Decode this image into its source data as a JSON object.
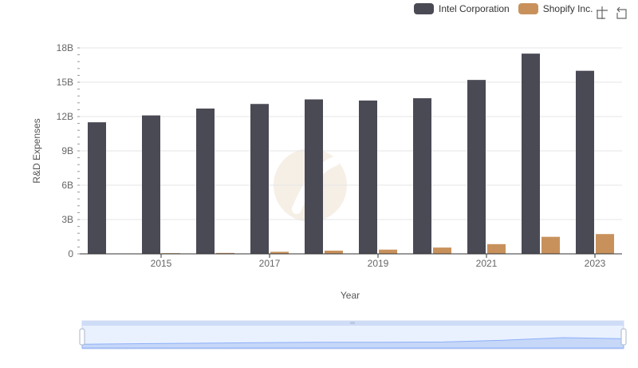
{
  "chart_data": {
    "type": "bar",
    "x": [
      2014,
      2015,
      2016,
      2017,
      2018,
      2019,
      2020,
      2021,
      2022,
      2023
    ],
    "x_tick_labels": [
      "2015",
      "2017",
      "2019",
      "2021",
      "2023"
    ],
    "series": [
      {
        "name": "Intel Corporation",
        "color": "#4a4a55",
        "values": [
          11.5,
          12.1,
          12.7,
          13.1,
          13.5,
          13.4,
          13.6,
          15.2,
          17.5,
          16.0
        ]
      },
      {
        "name": "Shopify Inc.",
        "color": "#c8915c",
        "values": [
          0.02,
          0.06,
          0.08,
          0.18,
          0.28,
          0.37,
          0.55,
          0.85,
          1.49,
          1.73
        ]
      }
    ],
    "ylabel": "R&D Expenses",
    "xlabel": "Year",
    "ylim": [
      0,
      18
    ],
    "y_ticks": [
      "0",
      "3B",
      "6B",
      "9B",
      "12B",
      "15B",
      "18B"
    ],
    "grid": true,
    "legend_position": "top-right"
  },
  "toolbox": {
    "zoom_icon": "zoom-icon",
    "reset_icon": "restore-icon"
  },
  "slider": {
    "handle_icon": "drag-handle-icon"
  }
}
